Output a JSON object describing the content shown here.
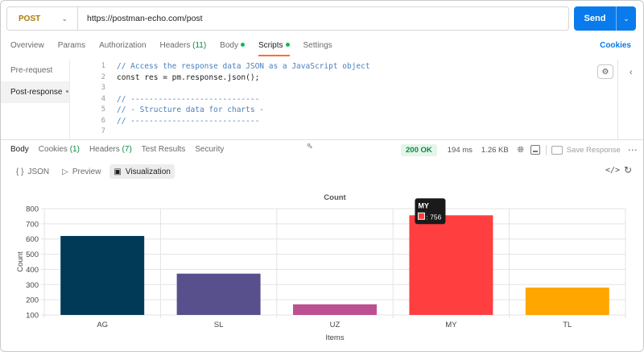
{
  "request": {
    "method": "POST",
    "url": "https://postman-echo.com/post",
    "send_label": "Send"
  },
  "request_tabs": {
    "overview": "Overview",
    "params": "Params",
    "authorization": "Authorization",
    "headers": "Headers",
    "headers_count": "(11)",
    "body": "Body",
    "scripts": "Scripts",
    "settings": "Settings",
    "cookies": "Cookies"
  },
  "script_side": {
    "pre_request": "Pre-request",
    "post_response": "Post-response"
  },
  "code": {
    "line_numbers": [
      "1",
      "2",
      "3",
      "4",
      "5",
      "6",
      "7"
    ],
    "line1": "// Access the response data JSON as a JavaScript object",
    "line2": "const res = pm.response.json();",
    "line4": "// ----------------------------",
    "line5": "// - Structure data for charts -",
    "line6": "// ----------------------------"
  },
  "response_tabs": {
    "body": "Body",
    "cookies": "Cookies",
    "cookies_count": "(1)",
    "headers": "Headers",
    "headers_count": "(7)",
    "test_results": "Test Results",
    "security": "Security"
  },
  "response_meta": {
    "status": "200 OK",
    "time": "194 ms",
    "size": "1.26 KB",
    "save_response": "Save Response"
  },
  "view_tabs": {
    "json": "JSON",
    "preview": "Preview",
    "visualization": "Visualization"
  },
  "icons": {
    "method_dropdown": "chevron-down-icon",
    "send_dropdown": "chevron-down-icon",
    "snippets": "cookie-icon",
    "collapse_right": "chevron-left-icon",
    "globe": "globe-icon",
    "json_view": "braces-icon",
    "preview_view": "play-icon",
    "visualization_view": "image-icon",
    "code": "code-icon",
    "refresh": "refresh-icon"
  },
  "colors": {
    "send_button": "#097bed",
    "active_tab_underline": "#ff6c37",
    "status_ok": "#0d8a3f",
    "dot_green": "#0cbb52",
    "method": "#ad7a03"
  },
  "chart_data": {
    "type": "bar",
    "title": "Count",
    "xlabel": "Items",
    "ylabel": "Count",
    "categories": [
      "AG",
      "SL",
      "UZ",
      "MY",
      "TL"
    ],
    "values": [
      620,
      372,
      170,
      756,
      280
    ],
    "colors": [
      "#003a57",
      "#58508d",
      "#bc5090",
      "#ff3e40",
      "#ffa600"
    ],
    "yticks": [
      "100",
      "200",
      "300",
      "400",
      "500",
      "600",
      "700",
      "800"
    ],
    "ylim": [
      100,
      800
    ],
    "grid": true,
    "tooltip": {
      "category": "MY",
      "label": ": 756"
    }
  }
}
